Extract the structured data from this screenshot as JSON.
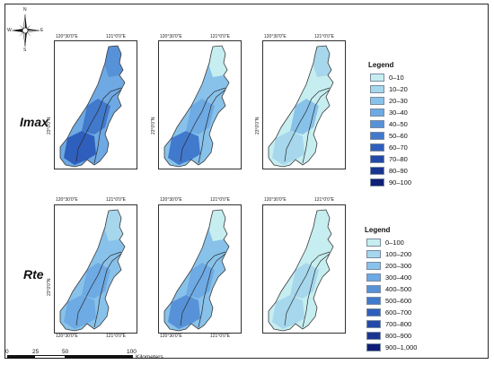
{
  "compass": {
    "n": "N",
    "e": "E",
    "s": "S",
    "w": "W"
  },
  "rows": [
    {
      "label": "Imax",
      "lon_west": "120°30'0\"E",
      "lon_east": "121°0'0\"E",
      "lat": "23°0'0\"N",
      "legend_title": "Legend",
      "legend_classes": [
        "0–10",
        "10–20",
        "20–30",
        "30–40",
        "40–50",
        "50–60",
        "60–70",
        "70–80",
        "80–90",
        "90–100"
      ]
    },
    {
      "label": "Rte",
      "lon_west": "120°30'0\"E",
      "lon_east": "121°0'0\"E",
      "lat": "23°0'0\"N",
      "legend_title": "Legend",
      "legend_classes": [
        "0–100",
        "100–200",
        "200–300",
        "300–400",
        "400–500",
        "500–600",
        "600–700",
        "700–800",
        "800–900",
        "900–1,000"
      ]
    }
  ],
  "legend_colors": [
    "#c6eef0",
    "#a6d7ec",
    "#88c2ea",
    "#6eaae4",
    "#5792d8",
    "#4179cc",
    "#2f5fbd",
    "#2249a8",
    "#193590",
    "#0f1f77"
  ],
  "maps": [
    {
      "name": "imax-map-1",
      "base_color": "#6ea9e3",
      "zones": [
        {
          "color": "#5792d8"
        },
        {
          "color": "#4179cc"
        },
        {
          "color": "#2f5fbd"
        }
      ]
    },
    {
      "name": "imax-map-2",
      "base_color": "#88c2ea",
      "zones": [
        {
          "color": "#c6eef0"
        },
        {
          "color": "#6eaae4"
        },
        {
          "color": "#4179cc"
        }
      ]
    },
    {
      "name": "imax-map-3",
      "base_color": "#c6eef0",
      "zones": [
        {
          "color": "#a6d7ec"
        },
        {
          "color": "#88c2ea"
        },
        {
          "color": "#a6d7ec"
        }
      ]
    },
    {
      "name": "rte-map-1",
      "base_color": "#88c2ea",
      "zones": [
        {
          "color": "#a6d7ec"
        },
        {
          "color": "#6eaae4"
        },
        {
          "color": "#6eaae4"
        }
      ]
    },
    {
      "name": "rte-map-2",
      "base_color": "#88c2ea",
      "zones": [
        {
          "color": "#c6eef0"
        },
        {
          "color": "#6eaae4"
        },
        {
          "color": "#5792d8"
        }
      ]
    },
    {
      "name": "rte-map-3",
      "base_color": "#c6eef0",
      "zones": [
        {
          "color": "#c6eef0"
        },
        {
          "color": "#a6d7ec"
        },
        {
          "color": "#a6d7ec"
        }
      ]
    }
  ],
  "scale": {
    "ticks": [
      "0",
      "25",
      "50",
      "100"
    ],
    "unit": "Kilometers"
  }
}
